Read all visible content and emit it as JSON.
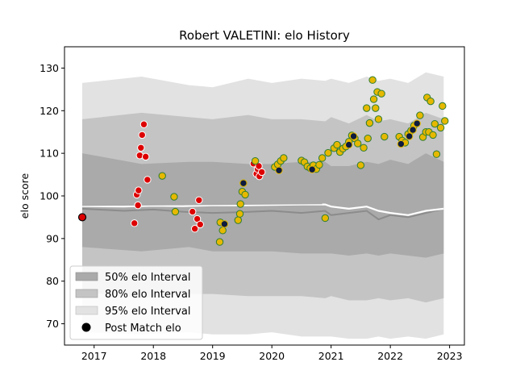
{
  "chart_data": {
    "type": "line",
    "title": "Robert VALETINI: elo History",
    "xlabel": "",
    "ylabel": "elo score",
    "xlim": [
      2016.5,
      2023.25
    ],
    "ylim": [
      65,
      135
    ],
    "x_ticks": [
      2017,
      2018,
      2019,
      2020,
      2021,
      2022,
      2023
    ],
    "y_ticks": [
      70,
      80,
      90,
      100,
      110,
      120,
      130
    ],
    "grid": false,
    "legend_position": "lower-left",
    "legend": [
      {
        "key": "i50",
        "label": "50% elo Interval"
      },
      {
        "key": "i80",
        "label": "80% elo Interval"
      },
      {
        "key": "i95",
        "label": "95% elo Interval"
      },
      {
        "key": "post",
        "label": "Post Match elo"
      }
    ],
    "colors": {
      "interval_50": "#aaaaaa",
      "interval_80": "#c4c4c4",
      "interval_95": "#e2e2e2",
      "mean_line": "#8c8c8c",
      "white_line": "#ffffff",
      "win_fill": "#e6b800",
      "win_edge": "#2e7d32",
      "loss_fill": "#dd0000",
      "loss_edge": "#ffffff",
      "navy_fill": "#0d1b3e",
      "navy_edge": "#e6b800"
    },
    "bands": {
      "x": [
        2016.8,
        2017.8,
        2018.6,
        2019.0,
        2019.6,
        2020.0,
        2020.5,
        2020.9,
        2021.0,
        2021.3,
        2021.6,
        2021.8,
        2022.0,
        2022.3,
        2022.6,
        2022.9
      ],
      "i95_upper": [
        126.5,
        128.0,
        126.0,
        125.5,
        127.5,
        126.5,
        127.5,
        127.0,
        127.5,
        126.5,
        128.0,
        127.0,
        127.5,
        126.5,
        129.0,
        128.0
      ],
      "i95_lower": [
        68.0,
        67.5,
        68.0,
        67.5,
        67.5,
        68.0,
        67.0,
        67.0,
        67.0,
        66.5,
        66.5,
        67.0,
        66.5,
        67.0,
        66.5,
        67.5
      ],
      "i80_upper": [
        118.0,
        119.5,
        118.5,
        118.0,
        119.0,
        118.0,
        118.0,
        117.5,
        118.5,
        117.0,
        119.0,
        117.5,
        118.0,
        117.0,
        119.5,
        118.0
      ],
      "i80_lower": [
        77.5,
        76.0,
        77.0,
        77.0,
        76.5,
        76.5,
        76.5,
        76.0,
        76.5,
        75.5,
        75.5,
        76.0,
        75.5,
        76.0,
        75.0,
        76.0
      ],
      "i50_upper": [
        110.0,
        107.5,
        108.0,
        108.0,
        107.5,
        107.5,
        108.0,
        108.0,
        107.0,
        107.0,
        108.0,
        107.5,
        108.5,
        107.5,
        110.0,
        108.0
      ],
      "i50_lower": [
        88.0,
        87.0,
        88.0,
        87.0,
        87.0,
        87.0,
        86.5,
        86.5,
        86.5,
        86.0,
        86.5,
        86.0,
        86.5,
        86.0,
        85.5,
        86.5
      ]
    },
    "mean_line": {
      "x": [
        2016.8,
        2017.5,
        2018.0,
        2018.5,
        2019.0,
        2019.5,
        2020.0,
        2020.5,
        2020.9,
        2021.0,
        2021.3,
        2021.6,
        2021.8,
        2022.0,
        2022.3,
        2022.6,
        2022.9
      ],
      "y": [
        97.0,
        96.5,
        96.8,
        96.3,
        96.0,
        96.2,
        96.5,
        96.0,
        96.5,
        95.5,
        96.0,
        96.5,
        94.5,
        95.5,
        95.0,
        96.0,
        97.0
      ]
    },
    "white_line": {
      "x": [
        2016.8,
        2017.5,
        2018.0,
        2018.5,
        2019.0,
        2019.5,
        2020.0,
        2020.5,
        2020.9,
        2021.0,
        2021.3,
        2021.6,
        2021.8,
        2022.0,
        2022.3,
        2022.6,
        2022.9
      ],
      "y": [
        97.6,
        97.5,
        97.7,
        97.6,
        97.8,
        97.8,
        97.9,
        98.0,
        98.0,
        97.5,
        97.0,
        97.5,
        96.5,
        96.0,
        95.5,
        96.5,
        97.0
      ]
    },
    "gray_segment": {
      "x": [
        2016.8,
        2020.85
      ],
      "y": [
        97.8,
        98.2
      ]
    },
    "points": {
      "loss": [
        [
          2017.68,
          93.6
        ],
        [
          2017.72,
          100.3
        ],
        [
          2017.74,
          97.8
        ],
        [
          2017.75,
          101.3
        ],
        [
          2017.77,
          109.5
        ],
        [
          2017.79,
          111.3
        ],
        [
          2017.81,
          114.3
        ],
        [
          2017.84,
          116.8
        ],
        [
          2017.87,
          109.2
        ],
        [
          2017.9,
          103.8
        ],
        [
          2018.66,
          96.3
        ],
        [
          2018.7,
          92.3
        ],
        [
          2018.74,
          94.6
        ],
        [
          2018.77,
          99.0
        ],
        [
          2018.79,
          93.3
        ],
        [
          2019.69,
          107.6
        ],
        [
          2019.74,
          105.2
        ],
        [
          2019.76,
          106.3
        ],
        [
          2019.78,
          107.0
        ],
        [
          2019.79,
          104.6
        ],
        [
          2019.83,
          105.6
        ]
      ],
      "win": [
        [
          2018.15,
          104.7
        ],
        [
          2018.35,
          99.8
        ],
        [
          2018.37,
          96.3
        ],
        [
          2019.12,
          89.2
        ],
        [
          2019.13,
          93.8
        ],
        [
          2019.17,
          91.9
        ],
        [
          2019.2,
          93.4
        ],
        [
          2019.43,
          94.3
        ],
        [
          2019.46,
          95.8
        ],
        [
          2019.47,
          98.1
        ],
        [
          2019.5,
          101.0
        ],
        [
          2019.52,
          103.0
        ],
        [
          2019.55,
          100.3
        ],
        [
          2019.72,
          108.2
        ],
        [
          2020.05,
          106.8
        ],
        [
          2020.1,
          107.4
        ],
        [
          2020.15,
          108.2
        ],
        [
          2020.2,
          108.9
        ],
        [
          2020.5,
          108.3
        ],
        [
          2020.55,
          107.9
        ],
        [
          2020.6,
          106.9
        ],
        [
          2020.65,
          106.5
        ],
        [
          2020.7,
          107.2
        ],
        [
          2020.75,
          106.3
        ],
        [
          2020.8,
          107.3
        ],
        [
          2020.85,
          108.9
        ],
        [
          2020.9,
          94.8
        ],
        [
          2020.95,
          110.1
        ],
        [
          2021.05,
          111.2
        ],
        [
          2021.1,
          112.0
        ],
        [
          2021.15,
          110.3
        ],
        [
          2021.2,
          111.1
        ],
        [
          2021.25,
          111.6
        ],
        [
          2021.3,
          112.7
        ],
        [
          2021.35,
          114.2
        ],
        [
          2021.4,
          113.5
        ],
        [
          2021.45,
          112.3
        ],
        [
          2021.5,
          107.2
        ],
        [
          2021.55,
          111.3
        ],
        [
          2021.6,
          120.6
        ],
        [
          2021.62,
          113.5
        ],
        [
          2021.65,
          117.1
        ],
        [
          2021.7,
          127.2
        ],
        [
          2021.72,
          122.7
        ],
        [
          2021.75,
          120.6
        ],
        [
          2021.78,
          124.4
        ],
        [
          2021.8,
          118.0
        ],
        [
          2021.85,
          124.0
        ],
        [
          2021.9,
          113.9
        ],
        [
          2022.15,
          113.9
        ],
        [
          2022.2,
          113.0
        ],
        [
          2022.25,
          112.5
        ],
        [
          2022.3,
          114.5
        ],
        [
          2022.35,
          115.3
        ],
        [
          2022.4,
          116.5
        ],
        [
          2022.5,
          118.9
        ],
        [
          2022.55,
          113.8
        ],
        [
          2022.6,
          115.0
        ],
        [
          2022.62,
          123.1
        ],
        [
          2022.65,
          115.0
        ],
        [
          2022.68,
          122.2
        ],
        [
          2022.72,
          114.3
        ],
        [
          2022.75,
          116.9
        ],
        [
          2022.78,
          109.8
        ],
        [
          2022.85,
          116.0
        ],
        [
          2022.88,
          121.1
        ],
        [
          2022.92,
          117.6
        ]
      ],
      "navy": [
        [
          2019.2,
          93.4
        ],
        [
          2019.52,
          103.0
        ],
        [
          2020.12,
          106.0
        ],
        [
          2020.68,
          106.2
        ],
        [
          2021.3,
          112.0
        ],
        [
          2021.38,
          114.0
        ],
        [
          2022.18,
          112.2
        ],
        [
          2022.32,
          114.0
        ],
        [
          2022.38,
          115.5
        ],
        [
          2022.45,
          117.0
        ]
      ],
      "first_post": [
        2016.8,
        95.0
      ]
    }
  }
}
